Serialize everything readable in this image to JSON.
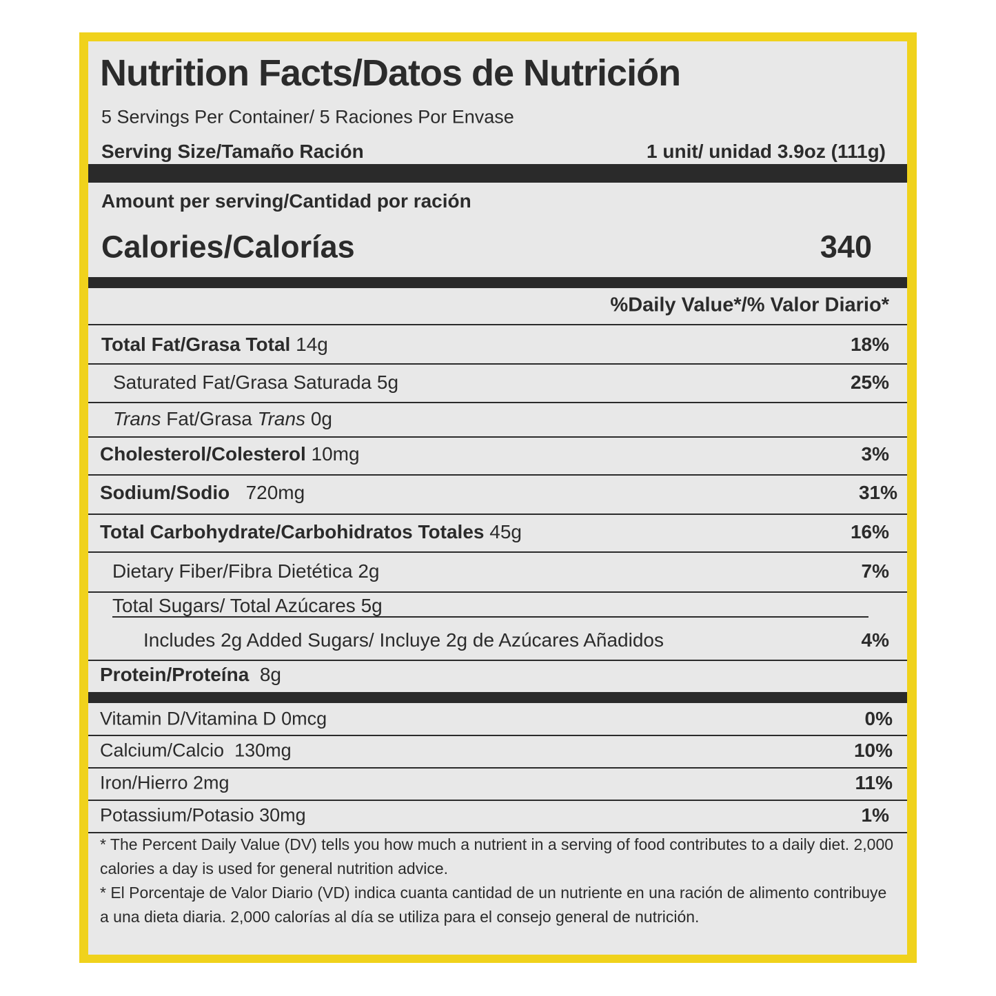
{
  "header": {
    "title": "Nutrition Facts/Datos de Nutrición",
    "servings": "5 Servings Per Container/ 5 Raciones Por Envase",
    "serving_size_label": "Serving Size/Tamaño Ración",
    "serving_size_value": "1 unit/ unidad 3.9oz (111g)"
  },
  "calories": {
    "amount_label": "Amount per serving/Cantidad por ración",
    "label": "Calories/Calorías",
    "value": "340"
  },
  "dv_header": "%Daily Value*/% Valor Diario*",
  "nutrients": [
    {
      "name": "Total Fat/Grasa Total",
      "amount": "14g",
      "dv": "18%"
    },
    {
      "name": "Saturated Fat/Grasa Saturada 5g",
      "dv": "25%"
    },
    {
      "name_parts": [
        "Trans",
        "Fat/Grasa",
        "Trans",
        "0g"
      ]
    },
    {
      "name": "Cholesterol/Colesterol",
      "amount": "10mg",
      "dv": "3%"
    },
    {
      "name": "Sodium/Sodio",
      "amount": "720mg",
      "dv": "31%"
    },
    {
      "name": "Total Carbohydrate/Carbohidratos Totales",
      "amount": "45g",
      "dv": "16%"
    },
    {
      "name": "Dietary Fiber/Fibra Dietética 2g",
      "dv": "7%"
    },
    {
      "name": "Total Sugars/ Total Azúcares 5g"
    },
    {
      "name": "Includes 2g Added Sugars/ Incluye 2g de Azúcares Añadidos",
      "dv": "4%"
    },
    {
      "name": "Protein/Proteína",
      "amount": "8g"
    }
  ],
  "vitamins": [
    {
      "name": "Vitamin D/Vitamina D 0mcg",
      "dv": "0%"
    },
    {
      "name": "Calcium/Calcio",
      "amount": "130mg",
      "dv": "10%"
    },
    {
      "name": "Iron/Hierro 2mg",
      "dv": "11%"
    },
    {
      "name": "Potassium/Potasio 30mg",
      "dv": "1%"
    }
  ],
  "footnotes": [
    "* The Percent Daily Value (DV) tells you how much a nutrient in a serving of food contributes to a daily diet. 2,000 calories a day is used for general nutrition advice.",
    "* El Porcentaje de Valor Diario (VD) indica cuanta cantidad de un nutriente en una ración de alimento contribuye a una dieta diaria. 2,000 calorías al día se utiliza para el consejo general de nutrición."
  ]
}
